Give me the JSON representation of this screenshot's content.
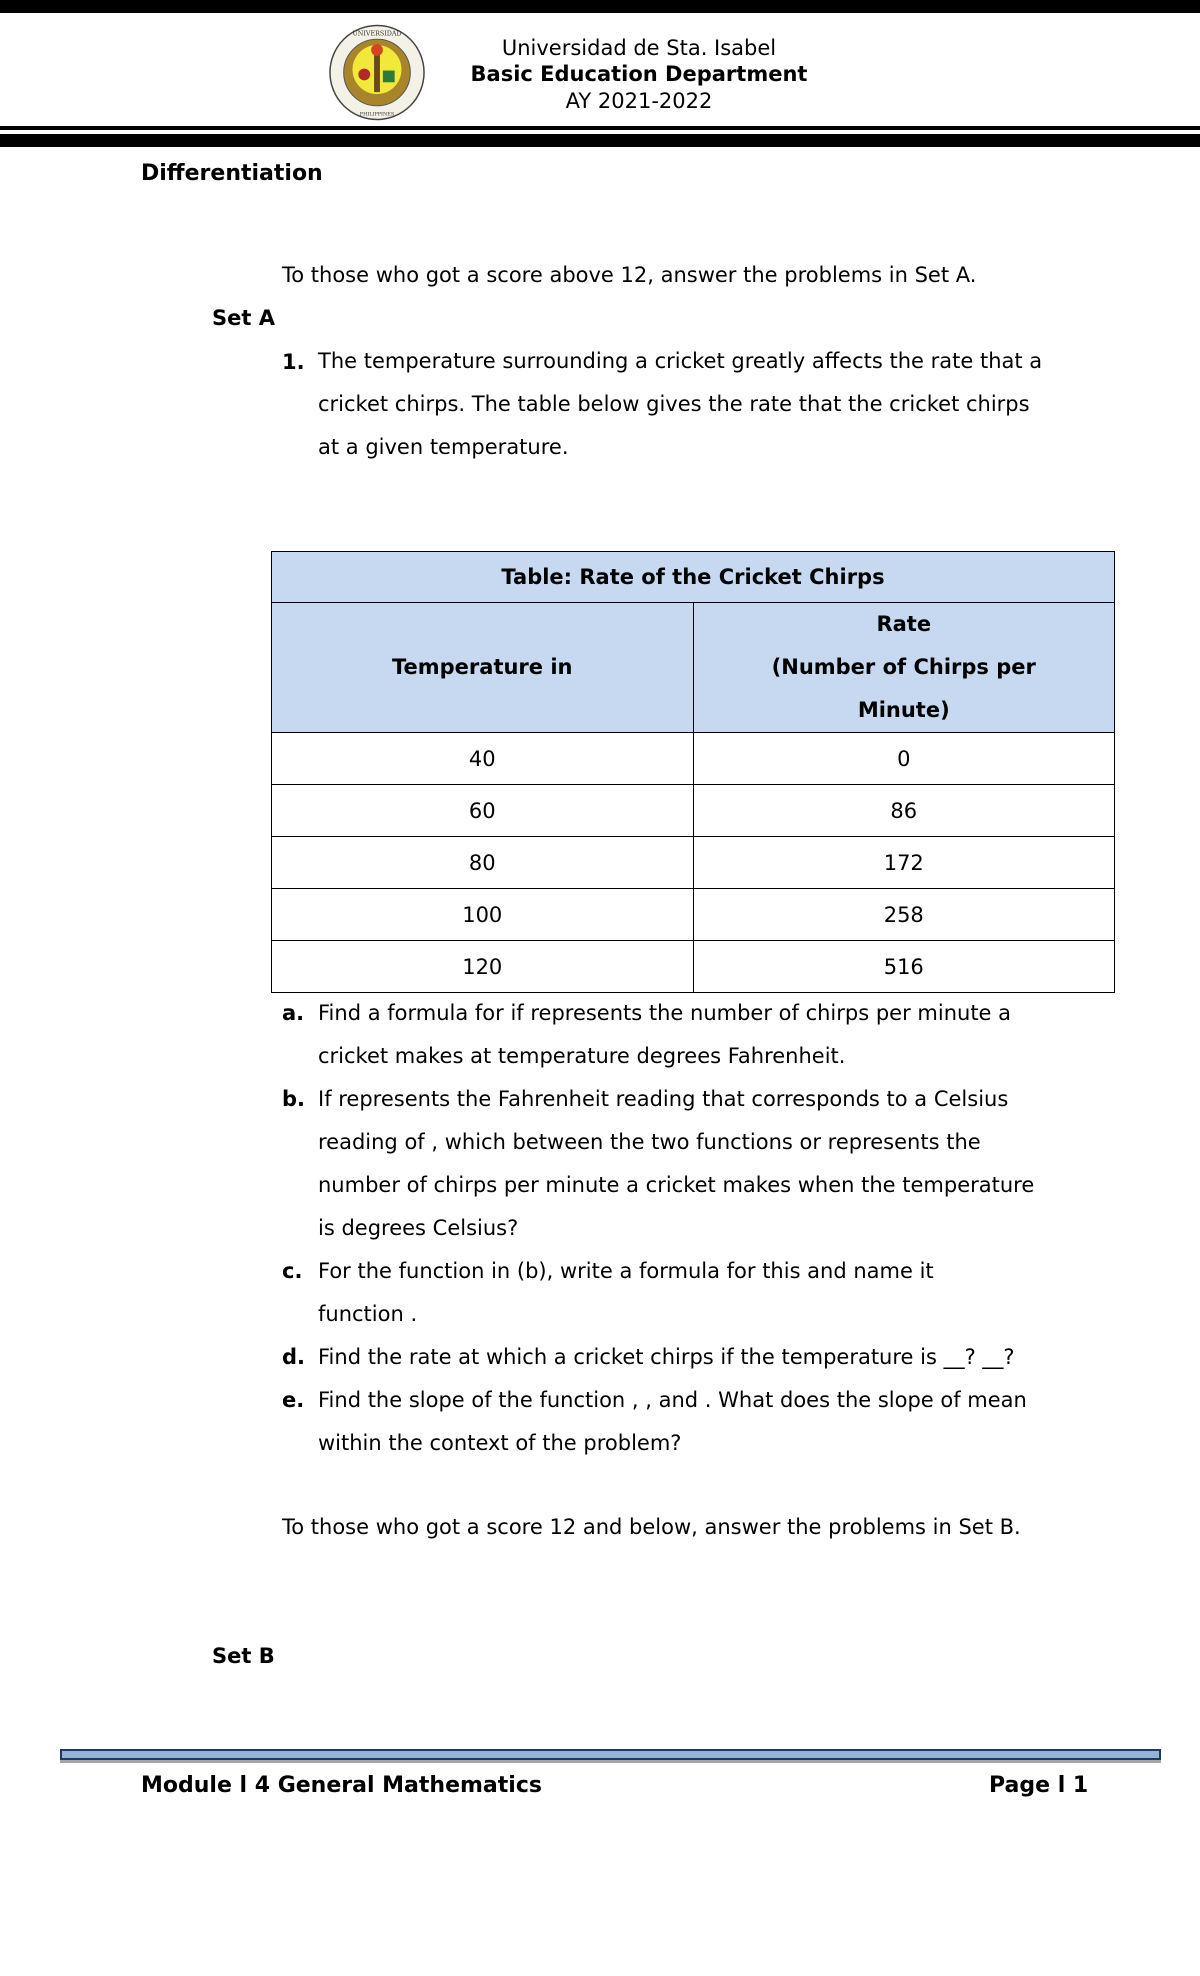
{
  "header": {
    "school": "Universidad de Sta. Isabel",
    "department": "Basic Education Department",
    "year": "AY 2021-2022",
    "logo_text": "UNIVERSIDAD DE STA. ISABEL 1868 NAGA CITY PHILIPPINES"
  },
  "section_title": "Differentiation",
  "set_a_instruction": "To those who got a score above 12, answer the problems in Set A.",
  "set_a_label": "Set A",
  "problem1": {
    "number": "1.",
    "lines": [
      "The temperature surrounding a cricket greatly affects the rate that a",
      "cricket chirps. The table below gives the rate that the cricket chirps",
      "at a given temperature."
    ]
  },
  "table": {
    "title": "Table: Rate of the Cricket Chirps",
    "col1_header": "Temperature in",
    "col2_header_lines": [
      "Rate",
      "(Number of Chirps per",
      "Minute)"
    ],
    "rows": [
      {
        "temp": "40",
        "rate": "0"
      },
      {
        "temp": "60",
        "rate": "86"
      },
      {
        "temp": "80",
        "rate": "172"
      },
      {
        "temp": "100",
        "rate": "258"
      },
      {
        "temp": "120",
        "rate": "516"
      }
    ],
    "header_bg": "#c6d9f1"
  },
  "subquestions": [
    {
      "letter": "a.",
      "lines": [
        "Find a formula for  if  represents the number of chirps per minute a",
        "cricket makes at temperature  degrees Fahrenheit."
      ]
    },
    {
      "letter": "b.",
      "lines": [
        "If  represents the Fahrenheit reading that corresponds to a Celsius",
        "reading of , which between the two functions  or  represents the",
        "number of chirps per minute a cricket makes when the temperature",
        "is  degrees Celsius?"
      ]
    },
    {
      "letter": "c.",
      "lines": [
        "For the function in (b), write a formula for this and name it",
        "function ."
      ]
    },
    {
      "letter": "d.",
      "lines": [
        "Find the rate at which a cricket chirps if the temperature is __? __?"
      ]
    },
    {
      "letter": "e.",
      "lines": [
        "Find the slope of the function , , and . What does the slope of  mean",
        "within the context of the problem?"
      ]
    }
  ],
  "set_b_instruction": "To those who got a score 12 and below, answer the problems in Set B.",
  "set_b_label": "Set B",
  "footer": {
    "module": "Module l 4  General Mathematics",
    "page": "Page l 1",
    "bar_color": "#95b3d7"
  }
}
